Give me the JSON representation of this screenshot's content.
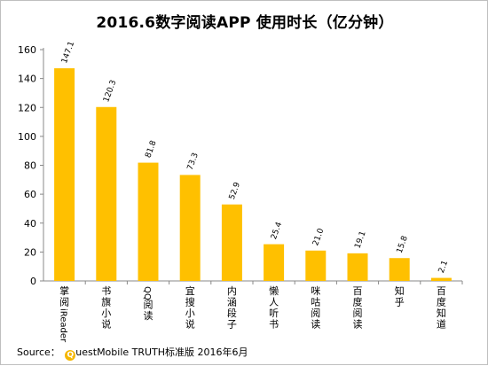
{
  "chart_data": {
    "type": "bar",
    "title": "2016.6数字阅读APP 使用时长（亿分钟）",
    "categories": [
      "掌阅iReader",
      "书旗小说",
      "QQ阅读",
      "宜搜小说",
      "内涵段子",
      "懒人听书",
      "咪咕阅读",
      "百度阅读",
      "知乎",
      "百度知道"
    ],
    "values": [
      147.1,
      120.3,
      81.8,
      73.3,
      52.9,
      25.4,
      21.0,
      19.1,
      15.8,
      2.1
    ],
    "value_labels": [
      "147.1",
      "120.3",
      "81.8",
      "73.3",
      "52.9",
      "25.4",
      "21.0",
      "19.1",
      "15.8",
      "2.1"
    ],
    "yticks": [
      0,
      20,
      40,
      60,
      80,
      100,
      120,
      140,
      160
    ],
    "ylim": [
      0,
      160
    ],
    "xlabel": "",
    "ylabel": "",
    "grid": false,
    "bar_color": "#FFC000"
  },
  "footer": {
    "source_prefix": "Source：",
    "logo_letter": "Q",
    "source_text": "uestMobile TRUTH标准版 2016年6月"
  }
}
